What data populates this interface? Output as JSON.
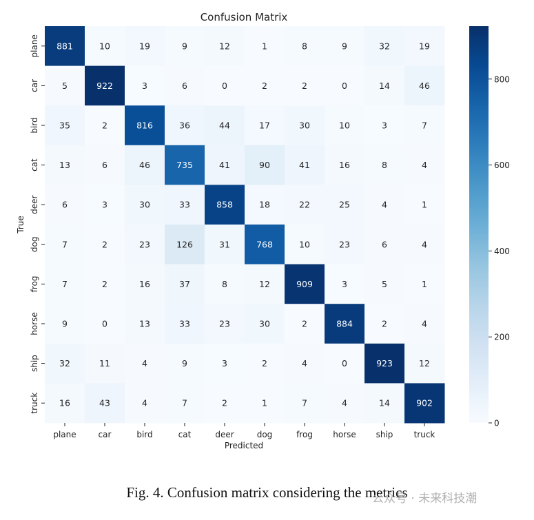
{
  "chart_data": {
    "type": "heatmap",
    "title": "Confusion Matrix",
    "xlabel": "Predicted",
    "ylabel": "True",
    "x_categories": [
      "plane",
      "car",
      "bird",
      "cat",
      "deer",
      "dog",
      "frog",
      "horse",
      "ship",
      "truck"
    ],
    "y_categories": [
      "plane",
      "car",
      "bird",
      "cat",
      "deer",
      "dog",
      "frog",
      "horse",
      "ship",
      "truck"
    ],
    "values": [
      [
        881,
        10,
        19,
        9,
        12,
        1,
        8,
        9,
        32,
        19
      ],
      [
        5,
        922,
        3,
        6,
        0,
        2,
        2,
        0,
        14,
        46
      ],
      [
        35,
        2,
        816,
        36,
        44,
        17,
        30,
        10,
        3,
        7
      ],
      [
        13,
        6,
        46,
        735,
        41,
        90,
        41,
        16,
        8,
        4
      ],
      [
        6,
        3,
        30,
        33,
        858,
        18,
        22,
        25,
        4,
        1
      ],
      [
        7,
        2,
        23,
        126,
        31,
        768,
        10,
        23,
        6,
        4
      ],
      [
        7,
        2,
        16,
        37,
        8,
        12,
        909,
        3,
        5,
        1
      ],
      [
        9,
        0,
        13,
        33,
        23,
        30,
        2,
        884,
        2,
        4
      ],
      [
        32,
        11,
        4,
        9,
        3,
        2,
        4,
        0,
        923,
        12
      ],
      [
        16,
        43,
        4,
        7,
        2,
        1,
        7,
        4,
        14,
        902
      ]
    ],
    "colorscale": "Blues",
    "color_range": [
      0,
      923
    ],
    "colorbar_ticks": [
      0,
      200,
      400,
      600,
      800
    ]
  },
  "caption": "Fig. 4. Confusion matrix considering the metrics",
  "watermark": "公众号 · 未来科技潮"
}
